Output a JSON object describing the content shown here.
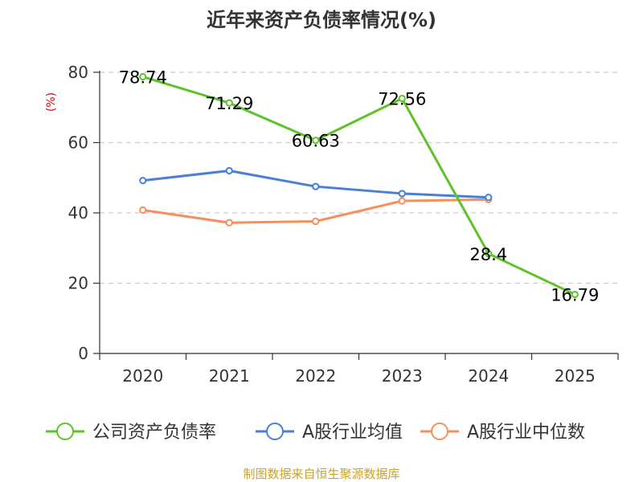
{
  "chart_data": {
    "type": "line",
    "title": "近年来资产负债率情况(%)",
    "ylabel": "(%)",
    "xlabel": "",
    "ylim": [
      0,
      80
    ],
    "yticks": [
      "0",
      "20",
      "40",
      "60",
      "80"
    ],
    "categories": [
      "2020",
      "2021",
      "2022",
      "2023",
      "2024",
      "2025"
    ],
    "grid": true,
    "legend_position": "bottom",
    "series": [
      {
        "name": "公司资产负债率",
        "color": "#5ec32a",
        "values": [
          78.74,
          71.29,
          60.63,
          72.56,
          28.4,
          16.79
        ],
        "labels": [
          "78.74",
          "71.29",
          "60.63",
          "72.56",
          "28.4",
          "16.79"
        ]
      },
      {
        "name": "A股行业均值",
        "color": "#4a7fd6",
        "values": [
          49.2,
          52.0,
          47.5,
          45.5,
          44.4,
          null
        ],
        "labels": []
      },
      {
        "name": "A股行业中位数",
        "color": "#f4905e",
        "values": [
          40.8,
          37.2,
          37.6,
          43.4,
          43.8,
          null
        ],
        "labels": []
      }
    ]
  },
  "source": "制图数据来自恒生聚源数据库"
}
